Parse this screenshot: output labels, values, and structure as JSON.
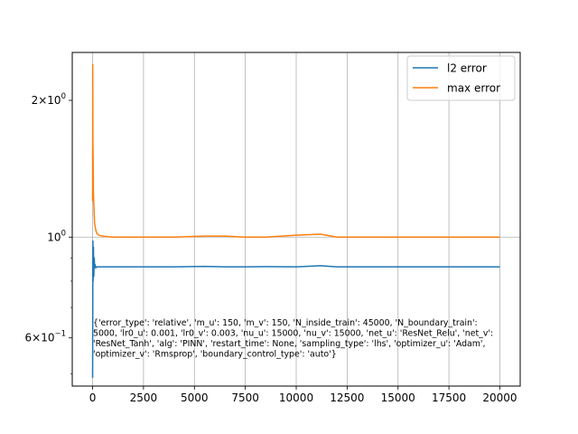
{
  "chart_data": {
    "type": "line",
    "xlim": [
      -1000,
      21000
    ],
    "ylim": [
      0.47,
      2.55
    ],
    "yscale": "log",
    "grid": "vertical major + y=1",
    "legend_position": "top-right",
    "x_ticks": [
      {
        "value": 0,
        "label": "0"
      },
      {
        "value": 2500,
        "label": "2500"
      },
      {
        "value": 5000,
        "label": "5000"
      },
      {
        "value": 7500,
        "label": "7500"
      },
      {
        "value": 10000,
        "label": "10000"
      },
      {
        "value": 12500,
        "label": "12500"
      },
      {
        "value": 15000,
        "label": "15000"
      },
      {
        "value": 17500,
        "label": "17500"
      },
      {
        "value": 20000,
        "label": "20000"
      }
    ],
    "y_ticks": [
      {
        "value": 2.0,
        "mant": "2",
        "exp": "0"
      },
      {
        "value": 1.0,
        "mant": "10",
        "exp": "0"
      },
      {
        "value": 0.6,
        "mant": "6",
        "exp": "−1"
      }
    ],
    "series": [
      {
        "name": "l2 error",
        "color": "#1f77b4",
        "x": [
          0,
          5,
          15,
          25,
          40,
          60,
          80,
          100,
          120,
          150,
          200,
          300,
          500,
          1000,
          2500,
          4000,
          5500,
          6500,
          7500,
          8500,
          10000,
          11200,
          12000,
          14000,
          16000,
          18000,
          20000
        ],
        "y": [
          0.49,
          0.62,
          0.98,
          0.8,
          0.95,
          0.82,
          0.9,
          0.86,
          0.87,
          0.855,
          0.86,
          0.86,
          0.86,
          0.86,
          0.86,
          0.86,
          0.862,
          0.86,
          0.86,
          0.861,
          0.86,
          0.865,
          0.86,
          0.86,
          0.86,
          0.86,
          0.86
        ]
      },
      {
        "name": "max error",
        "color": "#ff7f0e",
        "x": [
          0,
          5,
          15,
          25,
          40,
          60,
          80,
          100,
          150,
          200,
          300,
          500,
          1000,
          2500,
          4000,
          5500,
          6500,
          7500,
          8500,
          10000,
          11200,
          12000,
          14000,
          16000,
          18000,
          20000
        ],
        "y": [
          1.2,
          2.4,
          1.6,
          1.5,
          1.25,
          1.18,
          1.12,
          1.07,
          1.04,
          1.02,
          1.01,
          1.005,
          1.0,
          1.0,
          1.0,
          1.005,
          1.005,
          1.0,
          1.0,
          1.01,
          1.015,
          1.0,
          1.0,
          1.0,
          1.0,
          1.0
        ]
      }
    ],
    "annotation": [
      "{'error_type': 'relative', 'm_u': 150, 'm_v': 150, 'N_inside_train': 45000, 'N_boundary_train':",
      "5000, 'lr0_u': 0.001, 'lr0_v': 0.003, 'nu_u': 15000, 'nu_v': 15000, 'net_u': 'ResNet_Relu', 'net_v':",
      "'ResNet_Tanh', 'alg': 'PINN', 'restart_time': None, 'sampling_type': 'lhs', 'optimizer_u': 'Adam',",
      "'optimizer_v': 'Rmsprop', 'boundary_control_type': 'auto'}"
    ]
  }
}
